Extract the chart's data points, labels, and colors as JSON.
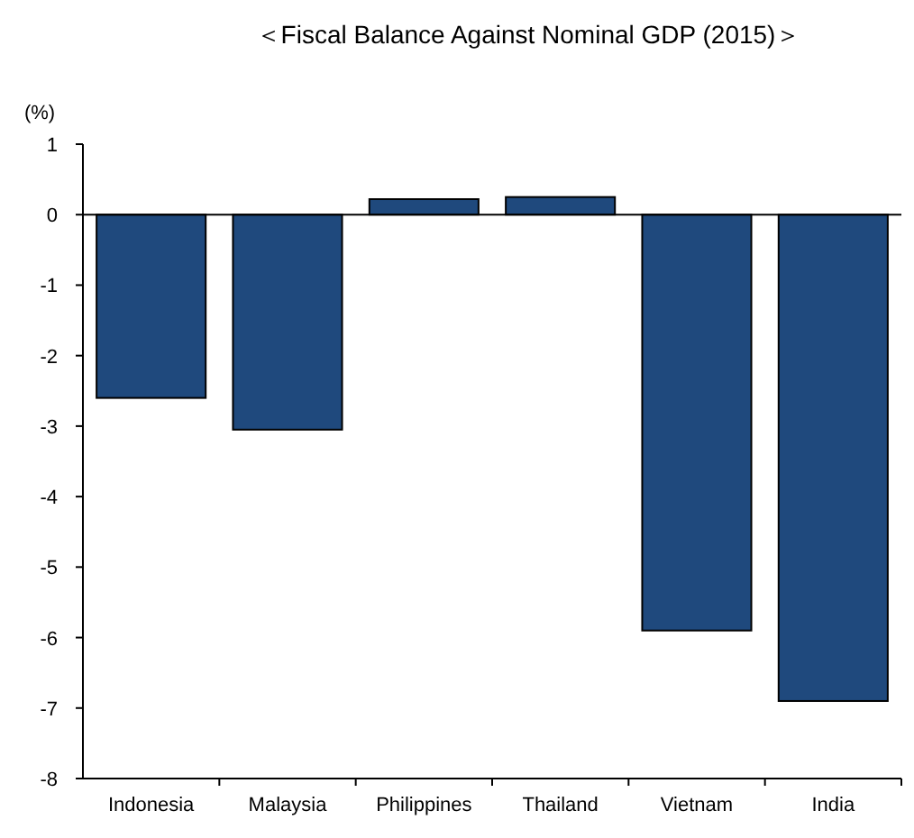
{
  "chart_data": {
    "type": "bar",
    "title": "＜Fiscal Balance Against Nominal GDP (2015)＞",
    "ylabel": "(%)",
    "categories": [
      "Indonesia",
      "Malaysia",
      "Philippines",
      "Thailand",
      "Vietnam",
      "India"
    ],
    "series": [
      {
        "color": "#1f497d",
        "values": [
          -2.6,
          -3.05,
          0.22,
          0.25,
          -5.9,
          -6.9
        ]
      }
    ],
    "ylim": [
      -8,
      1
    ],
    "yticks": [
      -8,
      -7,
      -6,
      -5,
      -4,
      -3,
      -2,
      -1,
      0,
      1
    ]
  }
}
